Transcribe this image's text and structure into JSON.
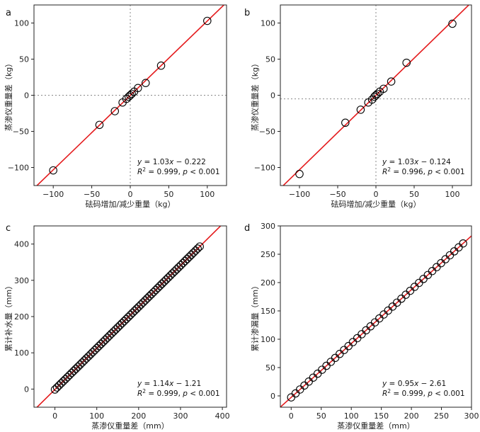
{
  "chart_data": [
    {
      "type": "scatter",
      "panel": "a",
      "xlabel": "砝码增加/减少重量（kg）",
      "ylabel": "蒸渗仪重量差（kg）",
      "xlim": [
        -125,
        125
      ],
      "ylim": [
        -125,
        125
      ],
      "xticks": [
        -100,
        -50,
        0,
        50,
        100
      ],
      "yticks": [
        -100,
        -50,
        0,
        50,
        100
      ],
      "xtick_labels": [
        "−100",
        "−50",
        "0",
        "50",
        "100"
      ],
      "ytick_labels": [
        "−100",
        "−50",
        "0",
        "50",
        "100"
      ],
      "ref_lines": {
        "x": 0,
        "y": 0
      },
      "fit": {
        "slope": 1.03,
        "intercept": -0.222
      },
      "eq_line1_prefix": "y = 1.03",
      "eq_line1_var": "x",
      "eq_line1_rest": " − 0.222",
      "eq_line2_prefix": "R",
      "eq_line2_sup": "2",
      "eq_line2_rest": " = 0.999, ",
      "eq_line2_p": "p",
      "eq_line2_tail": " < 0.001",
      "points": [
        [
          -100,
          -104
        ],
        [
          -40,
          -41
        ],
        [
          -20,
          -22
        ],
        [
          -10,
          -10
        ],
        [
          -5,
          -5
        ],
        [
          -2,
          -2
        ],
        [
          0,
          0
        ],
        [
          2,
          2
        ],
        [
          5,
          5
        ],
        [
          10,
          10
        ],
        [
          20,
          17
        ],
        [
          40,
          41
        ],
        [
          100,
          103
        ]
      ]
    },
    {
      "type": "scatter",
      "panel": "b",
      "xlabel": "砝码增加/减少重量（kg）",
      "ylabel": "蒸渗仪重量差（kg）",
      "xlim": [
        -125,
        125
      ],
      "ylim": [
        -125,
        125
      ],
      "xticks": [
        -100,
        -50,
        0,
        50,
        100
      ],
      "yticks": [
        -100,
        -50,
        0,
        50,
        100
      ],
      "xtick_labels": [
        "−100",
        "−50",
        "0",
        "50",
        "100"
      ],
      "ytick_labels": [
        "−100",
        "−50",
        "0",
        "50",
        "100"
      ],
      "ref_lines": {
        "x": 0,
        "y": -5
      },
      "fit": {
        "slope": 1.03,
        "intercept": -0.124
      },
      "eq_line1_prefix": "y = 1.03",
      "eq_line1_var": "x",
      "eq_line1_rest": " − 0.124",
      "eq_line2_prefix": "R",
      "eq_line2_sup": "2",
      "eq_line2_rest": " = 0.996, ",
      "eq_line2_p": "p",
      "eq_line2_tail": " < 0.001",
      "points": [
        [
          -100,
          -109
        ],
        [
          -40,
          -38
        ],
        [
          -20,
          -20
        ],
        [
          -10,
          -10
        ],
        [
          -5,
          -6
        ],
        [
          -2,
          -2
        ],
        [
          0,
          0
        ],
        [
          2,
          2
        ],
        [
          5,
          5
        ],
        [
          10,
          9
        ],
        [
          20,
          19
        ],
        [
          40,
          45
        ],
        [
          100,
          99
        ]
      ]
    },
    {
      "type": "scatter",
      "panel": "c",
      "xlabel": "蒸渗仪重量差（mm）",
      "ylabel": "累计补水量（mm）",
      "xlim": [
        -50,
        410
      ],
      "ylim": [
        -50,
        450
      ],
      "xticks": [
        0,
        100,
        200,
        300,
        400
      ],
      "yticks": [
        0,
        100,
        200,
        300,
        400
      ],
      "xtick_labels": [
        "0",
        "100",
        "200",
        "300",
        "400"
      ],
      "ytick_labels": [
        "0",
        "100",
        "200",
        "300",
        "400"
      ],
      "fit": {
        "slope": 1.14,
        "intercept": -1.21
      },
      "eq_line1_prefix": "y = 1.14",
      "eq_line1_var": "x",
      "eq_line1_rest": " − 1.21",
      "eq_line2_prefix": "R",
      "eq_line2_sup": "2",
      "eq_line2_rest": " = 0.999, ",
      "eq_line2_p": "p",
      "eq_line2_tail": " < 0.001",
      "points_range": {
        "x_start": 0,
        "x_end": 346,
        "count": 70
      }
    },
    {
      "type": "scatter",
      "panel": "d",
      "xlabel": "蒸渗仪重量差（mm）",
      "ylabel": "累计渗漏量（mm）",
      "xlim": [
        -18,
        300
      ],
      "ylim": [
        -20,
        300
      ],
      "xticks": [
        0,
        50,
        100,
        150,
        200,
        250,
        300
      ],
      "yticks": [
        0,
        50,
        100,
        150,
        200,
        250,
        300
      ],
      "xtick_labels": [
        "0",
        "50",
        "100",
        "150",
        "200",
        "250",
        "300"
      ],
      "ytick_labels": [
        "0",
        "50",
        "100",
        "150",
        "200",
        "250",
        "300"
      ],
      "fit": {
        "slope": 0.95,
        "intercept": -2.61
      },
      "eq_line1_prefix": "y = 0.95",
      "eq_line1_var": "x",
      "eq_line1_rest": " − 2.61",
      "eq_line2_prefix": "R",
      "eq_line2_sup": "2",
      "eq_line2_rest": " = 0.999, ",
      "eq_line2_p": "p",
      "eq_line2_tail": " < 0.001",
      "points_range": {
        "x_start": 0,
        "x_end": 286,
        "count": 40
      }
    }
  ],
  "colors": {
    "fit_line": "#e41a1c",
    "marker": "#000000",
    "ref_line": "#888888",
    "axis": "#222222"
  }
}
